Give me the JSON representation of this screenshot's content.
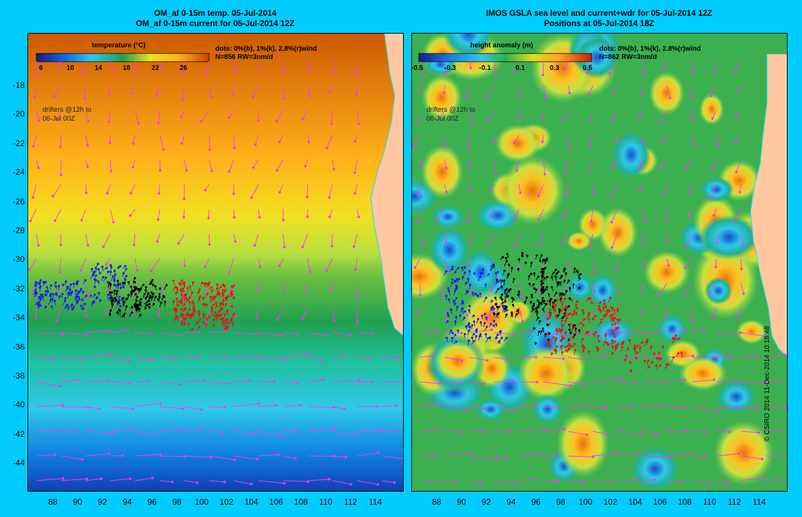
{
  "left": {
    "title1": "OM_af 0-15m temp. 05-Jul-2014",
    "title2": "OM_af 0-15m current for 05-Jul-2014 12Z",
    "legend_title": "temperature (°C)",
    "colorbar_ticks": [
      "6",
      "10",
      "14",
      "18",
      "22",
      "26"
    ],
    "dots_line1": "dots: 0%(b), 1%(k), 2.8%(r)wind",
    "dots_line2": "N=856 RW=3nm/d",
    "drifters1": "drifters @12h to",
    "drifters2": "06-Jul 00Z"
  },
  "right": {
    "title1": "IMOS GSLA sea level and current+wdr for 05-Jul-2014 12Z",
    "title2": "Positions at 05-Jul-2014 18Z",
    "legend_title": "height anomaly (m)",
    "colorbar_ticks": [
      "-0.5",
      "-0.3",
      "-0.1",
      "0.1",
      "0.3",
      "0.5"
    ],
    "dots_line1": "dots: 0%(b), 1%(k), 2.8%(r)wind",
    "dots_line2": "N=862 RW=3nm/d",
    "drifters1": "drifters @12h to",
    "drifters2": "06-Jul 00Z"
  },
  "lat_ticks": [
    "-18",
    "-20",
    "-22",
    "-24",
    "-26",
    "-28",
    "-30",
    "-32",
    "-34",
    "-36",
    "-38",
    "-40",
    "-42",
    "-44"
  ],
  "lon_ticks": [
    "88",
    "90",
    "92",
    "94",
    "96",
    "98",
    "100",
    "102",
    "104",
    "106",
    "108",
    "110",
    "112",
    "114"
  ],
  "credit": "© CSIRO 2014   11-Dec-2014 10:18:48",
  "colors": {
    "background": "#00ccff",
    "arrows": "#ff33ff",
    "drift_blue": "#1a1aff",
    "drift_black": "#000000",
    "drift_red": "#ee1111",
    "land": "#ffc8a0",
    "coast": "#33dddd"
  }
}
